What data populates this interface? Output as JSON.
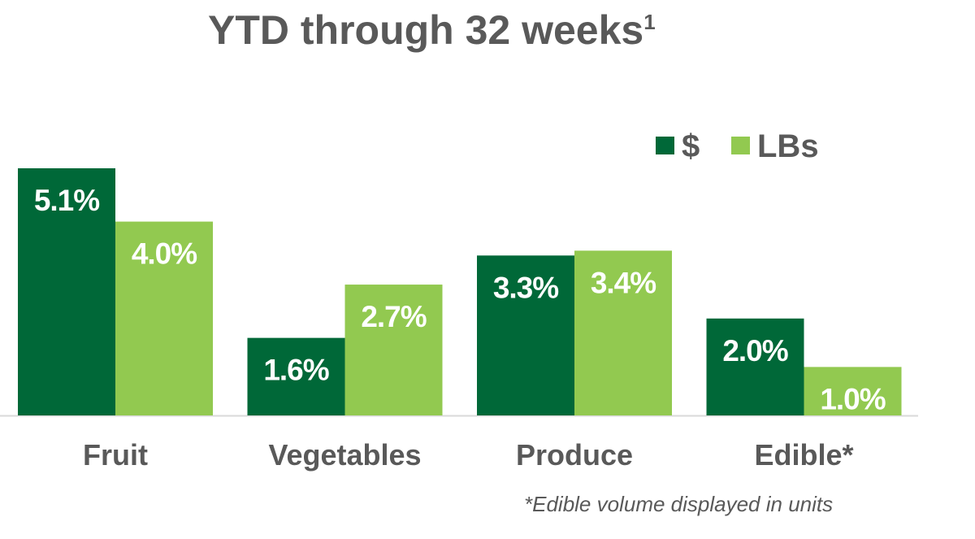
{
  "chart_data": {
    "type": "bar",
    "title": "YTD through 32 weeks",
    "title_superscript": "1",
    "categories": [
      "Fruit",
      "Vegetables",
      "Produce",
      "Edible*"
    ],
    "series": [
      {
        "name": "$",
        "values": [
          5.1,
          1.6,
          3.3,
          2.0
        ],
        "labels": [
          "5.1%",
          "1.6%",
          "3.3%",
          "2.0%"
        ],
        "color": "#006838"
      },
      {
        "name": "LBs",
        "values": [
          4.0,
          2.7,
          3.4,
          1.0
        ],
        "labels": [
          "4.0%",
          "2.7%",
          "3.4%",
          "1.0%"
        ],
        "color": "#92c950"
      }
    ],
    "ylim": [
      0,
      5.1
    ],
    "grid": false,
    "legend": "top-right",
    "footnote": "*Edible volume displayed in units"
  }
}
